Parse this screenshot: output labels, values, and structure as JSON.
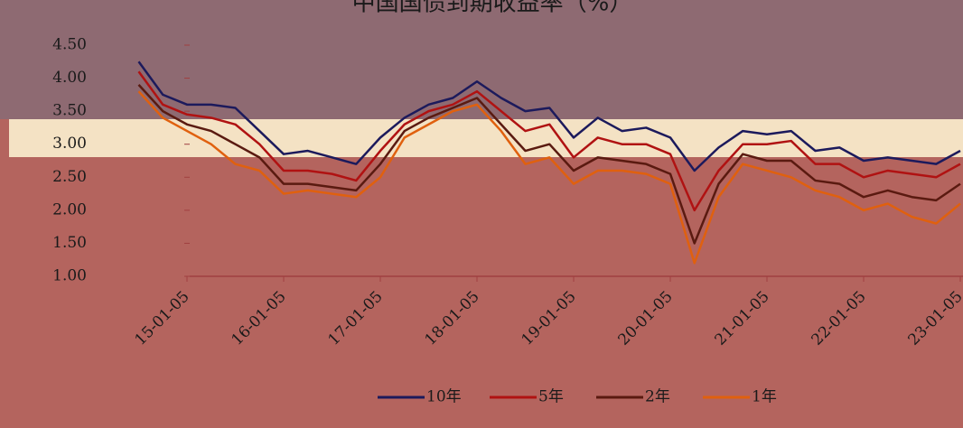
{
  "chart_data": {
    "type": "line",
    "title": "中国国债到期收益率（%）",
    "categories": [
      null,
      null,
      "15-01-05",
      null,
      null,
      null,
      "16-01-05",
      null,
      null,
      null,
      "17-01-05",
      null,
      null,
      null,
      "18-01-05",
      null,
      null,
      null,
      "19-01-05",
      null,
      null,
      null,
      "20-01-05",
      null,
      null,
      null,
      "21-01-05",
      null,
      null,
      null,
      "22-01-05",
      null,
      null,
      null,
      "23-01-05"
    ],
    "series": [
      {
        "name": "10年",
        "color": "#1c1a5c",
        "values": [
          4.25,
          3.75,
          3.6,
          3.6,
          3.55,
          3.2,
          2.85,
          2.9,
          2.8,
          2.7,
          3.1,
          3.4,
          3.6,
          3.7,
          3.95,
          3.7,
          3.5,
          3.55,
          3.1,
          3.4,
          3.2,
          3.25,
          3.1,
          2.6,
          2.95,
          3.2,
          3.15,
          3.2,
          2.9,
          2.95,
          2.75,
          2.8,
          2.75,
          2.7,
          2.9
        ]
      },
      {
        "name": "5年",
        "color": "#b01212",
        "values": [
          4.1,
          3.6,
          3.45,
          3.4,
          3.3,
          3.0,
          2.6,
          2.6,
          2.55,
          2.45,
          2.9,
          3.3,
          3.5,
          3.6,
          3.8,
          3.5,
          3.2,
          3.3,
          2.8,
          3.1,
          3.0,
          3.0,
          2.85,
          2.0,
          2.6,
          3.0,
          3.0,
          3.05,
          2.7,
          2.7,
          2.5,
          2.6,
          2.55,
          2.5,
          2.7
        ]
      },
      {
        "name": "2年",
        "color": "#5a1a10",
        "values": [
          3.9,
          3.5,
          3.3,
          3.2,
          3.0,
          2.8,
          2.4,
          2.4,
          2.35,
          2.3,
          2.7,
          3.2,
          3.4,
          3.55,
          3.7,
          3.3,
          2.9,
          3.0,
          2.6,
          2.8,
          2.75,
          2.7,
          2.55,
          1.5,
          2.4,
          2.85,
          2.75,
          2.75,
          2.45,
          2.4,
          2.2,
          2.3,
          2.2,
          2.15,
          2.4
        ]
      },
      {
        "name": "1年",
        "color": "#e0600e",
        "values": [
          3.8,
          3.4,
          3.2,
          3.0,
          2.7,
          2.6,
          2.25,
          2.3,
          2.25,
          2.2,
          2.5,
          3.1,
          3.3,
          3.5,
          3.6,
          3.2,
          2.7,
          2.8,
          2.4,
          2.6,
          2.6,
          2.55,
          2.4,
          1.2,
          2.2,
          2.7,
          2.6,
          2.5,
          2.3,
          2.2,
          2.0,
          2.1,
          1.9,
          1.8,
          2.1
        ]
      }
    ],
    "ylim": [
      1,
      4.5
    ],
    "yticks": [
      {
        "value": 1,
        "label": "1.00"
      },
      {
        "value": 1.5,
        "label": "1.50"
      },
      {
        "value": 2,
        "label": "2.00"
      },
      {
        "value": 2.5,
        "label": "2.50"
      },
      {
        "value": 3,
        "label": "3.00"
      },
      {
        "value": 3.5,
        "label": "3.50"
      },
      {
        "value": 4,
        "label": "4.00"
      },
      {
        "value": 4.5,
        "label": "4.50"
      }
    ],
    "legend": "bottom"
  }
}
